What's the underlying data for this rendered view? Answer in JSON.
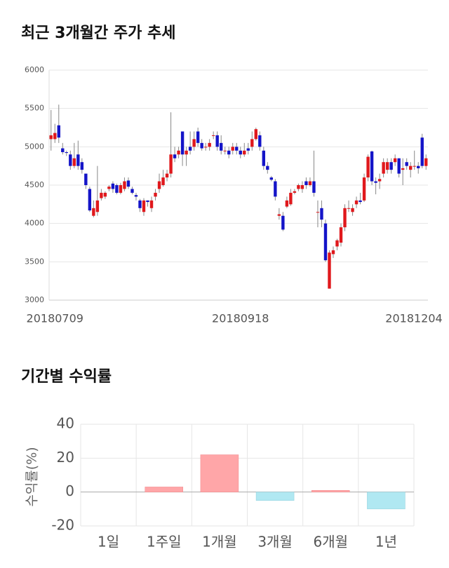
{
  "chart_data": [
    {
      "type": "candlestick",
      "title": "최근 3개월간 주가 추세",
      "categories": [
        null,
        "20180709",
        null,
        null,
        null,
        null,
        null,
        null,
        null,
        null,
        null,
        null,
        null,
        null,
        null,
        null,
        null,
        null,
        null,
        null,
        null,
        null,
        null,
        null,
        null,
        null,
        null,
        null,
        null,
        null,
        null,
        null,
        null,
        null,
        null,
        null,
        null,
        null,
        null,
        null,
        null,
        null,
        null,
        null,
        null,
        null,
        null,
        null,
        null,
        "20180918",
        null,
        null,
        null,
        null,
        null,
        null,
        null,
        null,
        null,
        null,
        null,
        null,
        null,
        null,
        null,
        null,
        null,
        null,
        null,
        null,
        null,
        null,
        null,
        null,
        null,
        null,
        null,
        null,
        null,
        null,
        null,
        null,
        null,
        null,
        null,
        null,
        null,
        null,
        null,
        null,
        null,
        null,
        null,
        null,
        null,
        "20181204",
        null,
        null
      ],
      "open": [
        5100,
        5100,
        5280,
        4980,
        4930,
        4900,
        4750,
        4900,
        4800,
        4650,
        4450,
        4100,
        4150,
        4330,
        4350,
        4450,
        4520,
        4500,
        4400,
        4450,
        4560,
        4450,
        4370,
        4300,
        4150,
        4300,
        4200,
        4350,
        4450,
        4500,
        4600,
        4650,
        4900,
        4900,
        5200,
        4900,
        5000,
        5000,
        5200,
        5050,
        5000,
        5000,
        5150,
        5150,
        5050,
        4950,
        4950,
        4950,
        5000,
        4950,
        4900,
        4980,
        5000,
        5100,
        5150,
        4950,
        4750,
        4600,
        4550,
        4100,
        4100,
        4220,
        4250,
        4400,
        4450,
        4450,
        4550,
        4500,
        4550,
        4150,
        4200,
        4000,
        3150,
        3600,
        3700,
        3750,
        3950,
        4200,
        4150,
        4250,
        4300,
        4300,
        4600,
        4940,
        4550,
        4550,
        4650,
        4700,
        4800,
        4800,
        4850,
        4700,
        4800,
        4700,
        4750,
        4750,
        5120,
        4750
      ],
      "high": [
        5480,
        5300,
        5550,
        5050,
        4950,
        4950,
        5050,
        5080,
        4850,
        4650,
        4480,
        4300,
        4750,
        4450,
        4420,
        4500,
        4550,
        4520,
        4530,
        4600,
        4600,
        4480,
        4400,
        4320,
        4330,
        4300,
        4350,
        4450,
        4650,
        4700,
        4700,
        5450,
        5000,
        5000,
        5200,
        5000,
        5200,
        5200,
        5250,
        5100,
        5050,
        5100,
        5200,
        5200,
        5150,
        5000,
        5000,
        5050,
        5050,
        5000,
        5050,
        5050,
        5200,
        5250,
        5200,
        5000,
        4800,
        4620,
        4580,
        4200,
        4150,
        4350,
        4450,
        4450,
        4520,
        4550,
        4600,
        4600,
        4950,
        4300,
        4300,
        4050,
        3650,
        3700,
        3800,
        4000,
        4250,
        4300,
        4250,
        4350,
        4400,
        4650,
        4900,
        4950,
        4600,
        4650,
        4850,
        4850,
        4850,
        4900,
        4850,
        4850,
        4850,
        4800,
        4950,
        4800,
        5170,
        4900
      ],
      "low": [
        4950,
        5050,
        5050,
        4900,
        4880,
        4700,
        4720,
        4700,
        4650,
        4450,
        4150,
        4080,
        4100,
        4300,
        4320,
        4420,
        4400,
        4380,
        4380,
        4420,
        4450,
        4380,
        4300,
        4150,
        4100,
        4220,
        4150,
        4300,
        4400,
        4480,
        4550,
        4600,
        4800,
        4850,
        4750,
        4750,
        4900,
        4950,
        5000,
        4950,
        4950,
        4950,
        5100,
        4950,
        4900,
        4900,
        4850,
        4900,
        4900,
        4850,
        4870,
        4900,
        4950,
        5080,
        4950,
        4700,
        4650,
        4550,
        4300,
        4050,
        3900,
        4200,
        4230,
        4380,
        4420,
        4400,
        4450,
        4480,
        4350,
        3950,
        3950,
        3500,
        3150,
        3550,
        3650,
        3700,
        3900,
        4150,
        4100,
        4200,
        4250,
        4280,
        4550,
        4500,
        4380,
        4450,
        4600,
        4650,
        4650,
        4750,
        4600,
        4500,
        4700,
        4600,
        4700,
        4650,
        4720,
        4700
      ],
      "close": [
        5150,
        5180,
        5120,
        4930,
        4920,
        4750,
        4850,
        4750,
        4700,
        4500,
        4170,
        4200,
        4300,
        4400,
        4400,
        4480,
        4450,
        4400,
        4500,
        4550,
        4480,
        4400,
        4350,
        4200,
        4300,
        4280,
        4300,
        4400,
        4550,
        4600,
        4650,
        4900,
        4850,
        4950,
        4900,
        4950,
        4950,
        5100,
        5050,
        4980,
        5000,
        5050,
        5150,
        5000,
        4950,
        4950,
        4900,
        5000,
        4950,
        4900,
        4950,
        4950,
        5100,
        5230,
        5000,
        4750,
        4700,
        4570,
        4350,
        4120,
        3920,
        4300,
        4400,
        4420,
        4500,
        4500,
        4500,
        4550,
        4400,
        4150,
        4050,
        3520,
        3620,
        3650,
        3780,
        3950,
        4200,
        4200,
        4200,
        4300,
        4280,
        4600,
        4870,
        4550,
        4530,
        4580,
        4800,
        4800,
        4700,
        4850,
        4650,
        4720,
        4750,
        4750,
        4750,
        4720,
        4750,
        4850
      ],
      "up_color": "#e0181c",
      "down_color": "#1414c8",
      "ylim": [
        3000,
        6000
      ],
      "yticks": [
        3000,
        3500,
        4000,
        4500,
        5000,
        5500,
        6000
      ],
      "grid": true
    },
    {
      "type": "bar",
      "title": "기간별 수익률",
      "ylabel": "수익률(%)",
      "categories": [
        "1일",
        "1주일",
        "1개월",
        "3개월",
        "6개월",
        "1년"
      ],
      "values": [
        0,
        3,
        22,
        -5,
        1,
        -10
      ],
      "positive_color": "#ffa6a8",
      "negative_color": "#b0e8f2",
      "ylim": [
        -20,
        40
      ],
      "yticks": [
        -20,
        0,
        20,
        40
      ],
      "grid": true
    }
  ]
}
